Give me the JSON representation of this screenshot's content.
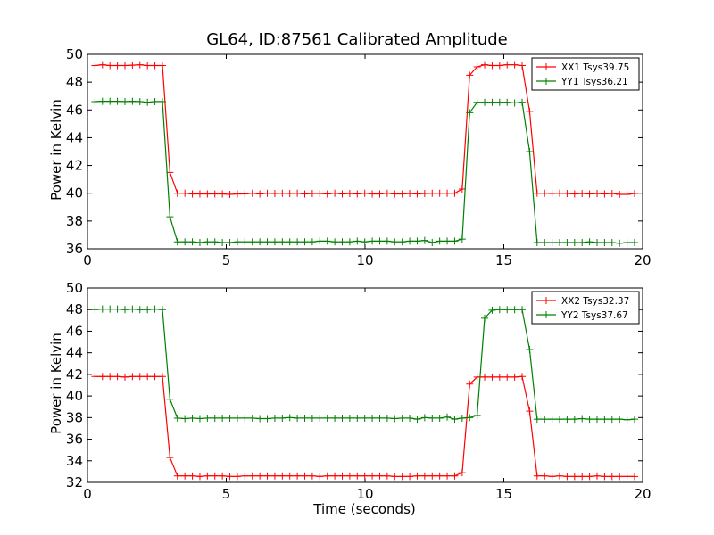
{
  "figure": {
    "title": "GL64, ID:87561 Calibrated Amplitude",
    "xlabel": "Time (seconds)"
  },
  "chart_data": [
    {
      "type": "line",
      "title": "GL64, ID:87561 Calibrated Amplitude",
      "xlabel": "",
      "ylabel": "Power in Kelvin",
      "xlim": [
        0,
        20
      ],
      "ylim": [
        36,
        50
      ],
      "xticks": [
        0,
        5,
        10,
        15,
        20
      ],
      "yticks": [
        36,
        38,
        40,
        42,
        44,
        46,
        48,
        50
      ],
      "grid": false,
      "legend": "top-right",
      "x": [
        0.27,
        0.54,
        0.81,
        1.08,
        1.35,
        1.62,
        1.89,
        2.16,
        2.43,
        2.7,
        2.97,
        3.24,
        3.51,
        3.78,
        4.05,
        4.32,
        4.59,
        4.86,
        5.13,
        5.4,
        5.67,
        5.94,
        6.21,
        6.48,
        6.75,
        7.02,
        7.29,
        7.56,
        7.83,
        8.1,
        8.37,
        8.64,
        8.91,
        9.18,
        9.45,
        9.72,
        9.99,
        10.26,
        10.53,
        10.8,
        11.07,
        11.34,
        11.61,
        11.88,
        12.15,
        12.42,
        12.69,
        12.96,
        13.23,
        13.5,
        13.77,
        14.04,
        14.31,
        14.58,
        14.85,
        15.12,
        15.39,
        15.66,
        15.93,
        16.2,
        16.47,
        16.74,
        17.01,
        17.28,
        17.55,
        17.82,
        18.09,
        18.36,
        18.63,
        18.9,
        19.17,
        19.44,
        19.71
      ],
      "series": [
        {
          "name": "XX1 Tsys39.75",
          "color": "#ff0000",
          "values": [
            49.2,
            49.25,
            49.2,
            49.2,
            49.2,
            49.22,
            49.25,
            49.2,
            49.2,
            49.2,
            41.5,
            40.0,
            40.0,
            39.95,
            39.95,
            39.95,
            39.95,
            39.95,
            39.92,
            39.95,
            39.95,
            40.0,
            39.95,
            40.0,
            39.98,
            40.0,
            39.98,
            40.0,
            39.95,
            39.98,
            39.98,
            39.95,
            40.0,
            39.95,
            39.98,
            39.95,
            40.0,
            39.95,
            39.95,
            40.0,
            39.95,
            39.95,
            39.98,
            39.95,
            39.98,
            40.0,
            40.0,
            40.0,
            40.0,
            40.3,
            48.5,
            49.1,
            49.25,
            49.2,
            49.2,
            49.25,
            49.25,
            49.2,
            45.9,
            40.0,
            40.0,
            39.98,
            40.0,
            39.98,
            39.95,
            39.98,
            39.95,
            39.98,
            39.95,
            39.98,
            39.92,
            39.92,
            39.98
          ]
        },
        {
          "name": "YY1 Tsys36.21",
          "color": "#008000",
          "values": [
            46.6,
            46.62,
            46.62,
            46.62,
            46.6,
            46.62,
            46.6,
            46.55,
            46.6,
            46.6,
            38.3,
            36.5,
            36.5,
            36.5,
            36.45,
            36.5,
            36.5,
            36.45,
            36.45,
            36.5,
            36.5,
            36.5,
            36.5,
            36.5,
            36.5,
            36.5,
            36.5,
            36.5,
            36.5,
            36.5,
            36.55,
            36.55,
            36.5,
            36.5,
            36.5,
            36.55,
            36.5,
            36.55,
            36.55,
            36.55,
            36.5,
            36.5,
            36.55,
            36.55,
            36.6,
            36.45,
            36.55,
            36.55,
            36.55,
            36.7,
            45.8,
            46.55,
            46.55,
            46.55,
            46.55,
            46.55,
            46.5,
            46.55,
            43.0,
            36.45,
            36.45,
            36.45,
            36.45,
            36.45,
            36.45,
            36.45,
            36.5,
            36.45,
            36.45,
            36.45,
            36.4,
            36.45,
            36.45
          ]
        }
      ]
    },
    {
      "type": "line",
      "title": "",
      "xlabel": "Time (seconds)",
      "ylabel": "Power in Kelvin",
      "xlim": [
        0,
        20
      ],
      "ylim": [
        32,
        50
      ],
      "xticks": [
        0,
        5,
        10,
        15,
        20
      ],
      "yticks": [
        32,
        34,
        36,
        38,
        40,
        42,
        44,
        46,
        48,
        50
      ],
      "grid": false,
      "legend": "top-right",
      "x": [
        0.27,
        0.54,
        0.81,
        1.08,
        1.35,
        1.62,
        1.89,
        2.16,
        2.43,
        2.7,
        2.97,
        3.24,
        3.51,
        3.78,
        4.05,
        4.32,
        4.59,
        4.86,
        5.13,
        5.4,
        5.67,
        5.94,
        6.21,
        6.48,
        6.75,
        7.02,
        7.29,
        7.56,
        7.83,
        8.1,
        8.37,
        8.64,
        8.91,
        9.18,
        9.45,
        9.72,
        9.99,
        10.26,
        10.53,
        10.8,
        11.07,
        11.34,
        11.61,
        11.88,
        12.15,
        12.42,
        12.69,
        12.96,
        13.23,
        13.5,
        13.77,
        14.04,
        14.31,
        14.58,
        14.85,
        15.12,
        15.39,
        15.66,
        15.93,
        16.2,
        16.47,
        16.74,
        17.01,
        17.28,
        17.55,
        17.82,
        18.09,
        18.36,
        18.63,
        18.9,
        19.17,
        19.44,
        19.71
      ],
      "series": [
        {
          "name": "XX2 Tsys32.37",
          "color": "#ff0000",
          "values": [
            41.8,
            41.8,
            41.8,
            41.8,
            41.75,
            41.8,
            41.8,
            41.8,
            41.8,
            41.8,
            34.3,
            32.6,
            32.6,
            32.6,
            32.55,
            32.6,
            32.6,
            32.6,
            32.55,
            32.55,
            32.6,
            32.6,
            32.6,
            32.6,
            32.6,
            32.6,
            32.6,
            32.6,
            32.6,
            32.6,
            32.55,
            32.6,
            32.6,
            32.6,
            32.6,
            32.6,
            32.6,
            32.6,
            32.6,
            32.6,
            32.55,
            32.55,
            32.55,
            32.6,
            32.6,
            32.6,
            32.6,
            32.6,
            32.6,
            32.9,
            41.1,
            41.75,
            41.75,
            41.75,
            41.75,
            41.75,
            41.75,
            41.8,
            38.6,
            32.6,
            32.6,
            32.55,
            32.6,
            32.55,
            32.55,
            32.55,
            32.55,
            32.6,
            32.55,
            32.55,
            32.55,
            32.55,
            32.55
          ]
        },
        {
          "name": "YY2 Tsys37.67",
          "color": "#008000",
          "values": [
            48.0,
            48.05,
            48.05,
            48.05,
            48.0,
            48.05,
            48.0,
            48.0,
            48.05,
            48.0,
            39.7,
            37.95,
            37.9,
            37.95,
            37.9,
            37.95,
            37.95,
            37.95,
            37.95,
            37.95,
            37.95,
            37.95,
            37.9,
            37.9,
            37.95,
            37.95,
            38.0,
            37.95,
            37.95,
            37.95,
            37.95,
            37.95,
            37.95,
            37.95,
            37.95,
            37.95,
            37.95,
            37.95,
            37.95,
            37.95,
            37.9,
            37.95,
            37.95,
            37.85,
            38.0,
            37.95,
            37.95,
            38.05,
            37.85,
            37.95,
            38.0,
            38.2,
            47.2,
            47.95,
            48.0,
            48.0,
            48.0,
            48.0,
            44.3,
            37.85,
            37.85,
            37.85,
            37.85,
            37.85,
            37.85,
            37.9,
            37.85,
            37.85,
            37.85,
            37.85,
            37.85,
            37.8,
            37.85
          ]
        }
      ]
    }
  ]
}
